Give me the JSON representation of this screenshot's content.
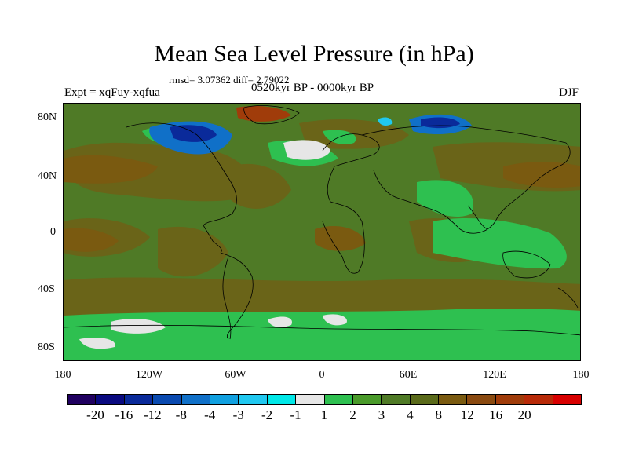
{
  "header": {
    "title": "Mean Sea Level Pressure (in hPa)",
    "stats": "rmsd= 3.07362 diff= 2.79022",
    "expt": "Expt = xqFuy-xqfua",
    "period": "0520kyr BP - 0000kyr BP",
    "season": "DJF"
  },
  "axes": {
    "y_labels": [
      "80N",
      "40N",
      "0",
      "40S",
      "80S"
    ],
    "x_labels": [
      "180",
      "120W",
      "60W",
      "0",
      "60E",
      "120E",
      "180"
    ]
  },
  "colorbar": {
    "colors": [
      "#200060",
      "#0a0a80",
      "#0a2a9a",
      "#0a4ab0",
      "#1070c8",
      "#10a0e0",
      "#20c8f0",
      "#00e8e8",
      "#e6e6e6",
      "#2ec050",
      "#4a9a2a",
      "#4f7a26",
      "#5a6a1a",
      "#7a5a10",
      "#8a4a10",
      "#a03c0a",
      "#b82a08",
      "#d80000"
    ],
    "labels": [
      "-20",
      "-16",
      "-12",
      "-8",
      "-4",
      "-3",
      "-2",
      "-1",
      "1",
      "2",
      "3",
      "4",
      "8",
      "12",
      "16",
      "20"
    ]
  },
  "map": {
    "colors": {
      "land_bg": "#4f7a26",
      "olive": "#5a6a1a",
      "brown": "#7a5a10",
      "green": "#2ec050",
      "white": "#e6e6e6",
      "blue": "#1070c8",
      "deep_blue": "#0a2a9a",
      "cyan": "#20c8f0",
      "red": "#a03c0a"
    }
  }
}
